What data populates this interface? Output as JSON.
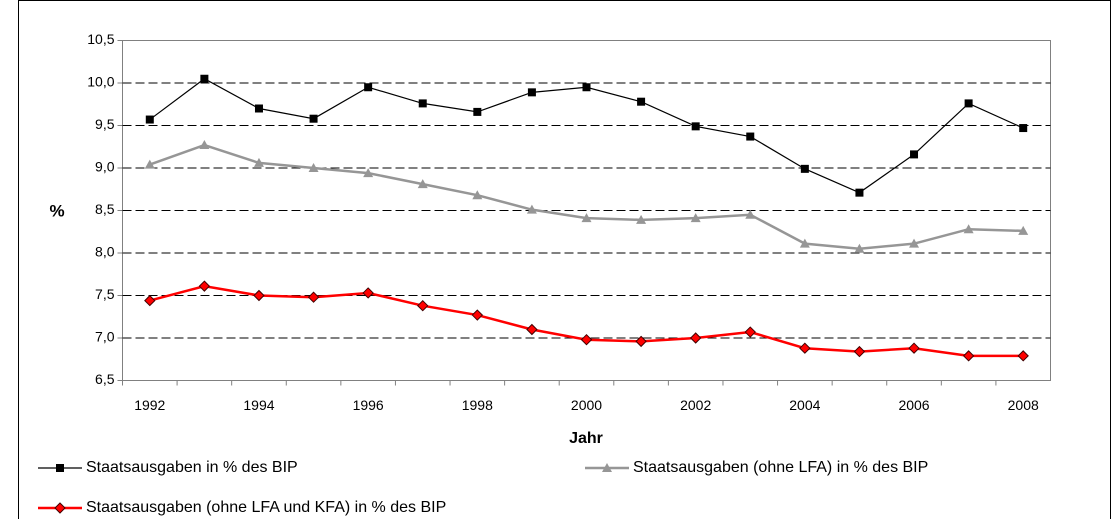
{
  "chart_data": {
    "type": "line",
    "x_label": "Jahr",
    "y_label": "%",
    "categories": [
      "1992",
      null,
      "1994",
      null,
      "1996",
      null,
      "1998",
      null,
      "2000",
      null,
      "2002",
      null,
      "2004",
      null,
      "2006",
      null,
      "2008"
    ],
    "ylim": [
      6.5,
      10.5
    ],
    "yticks": [
      {
        "value": 6.5,
        "label": "6,5"
      },
      {
        "value": 7.0,
        "label": "7,0"
      },
      {
        "value": 7.5,
        "label": "7,5"
      },
      {
        "value": 8.0,
        "label": "8,0"
      },
      {
        "value": 8.5,
        "label": "8,5"
      },
      {
        "value": 9.0,
        "label": "9,0"
      },
      {
        "value": 9.5,
        "label": "9,5"
      },
      {
        "value": 10.0,
        "label": "10,0"
      },
      {
        "value": 10.5,
        "label": "10,5"
      }
    ],
    "grid": true,
    "legend": "bottom",
    "series": [
      {
        "name": "Staatsausgaben in % des BIP",
        "color": "#000000",
        "marker": "square",
        "values": [
          9.57,
          10.05,
          9.7,
          9.58,
          9.95,
          9.76,
          9.66,
          9.89,
          9.95,
          9.78,
          9.49,
          9.37,
          8.99,
          8.71,
          9.16,
          9.76,
          9.47
        ]
      },
      {
        "name": "Staatsausgaben (ohne LFA) in % des BIP",
        "color": "#969696",
        "marker": "triangle",
        "values": [
          9.04,
          9.27,
          9.06,
          9.0,
          8.94,
          8.81,
          8.68,
          8.51,
          8.41,
          8.39,
          8.41,
          8.45,
          8.11,
          8.05,
          8.11,
          8.28,
          8.26
        ]
      },
      {
        "name": "Staatsausgaben (ohne LFA und KFA) in % des BIP",
        "color": "#ff0000",
        "marker": "diamond",
        "values": [
          7.44,
          7.61,
          7.5,
          7.48,
          7.53,
          7.38,
          7.27,
          7.1,
          6.98,
          6.96,
          7.0,
          7.07,
          6.88,
          6.84,
          6.88,
          6.79,
          6.79
        ]
      }
    ]
  }
}
